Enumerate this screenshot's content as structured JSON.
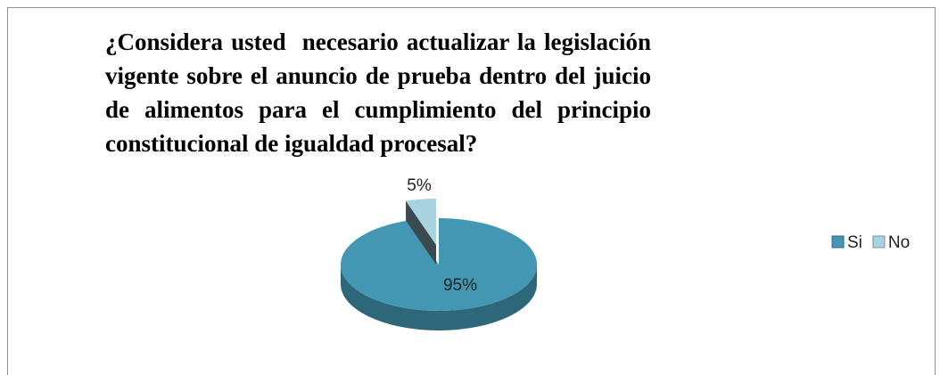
{
  "chart_data": {
    "type": "pie",
    "title": "¿Considera usted  necesario actualizar la legislación vigente sobre el anuncio de prueba dentro del juicio de alimentos para el cumplimiento del principio constitucional de igualdad procesal?",
    "categories": [
      "Si",
      "No"
    ],
    "values": [
      95,
      5
    ],
    "value_labels": [
      "95%",
      "5%"
    ],
    "colors": [
      "#4397b3",
      "#a8d3e1"
    ],
    "legend": "right"
  }
}
